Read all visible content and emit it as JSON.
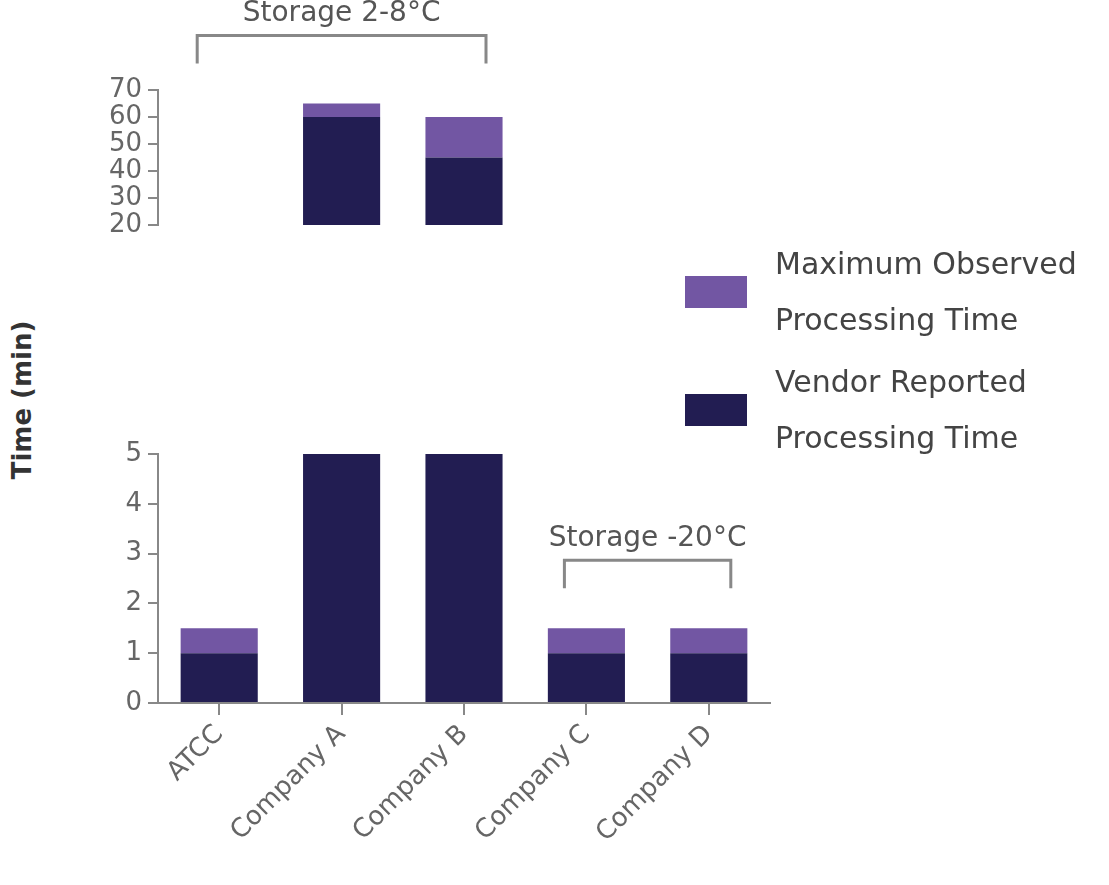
{
  "chart_data": {
    "type": "bar",
    "y_label": "Time (min)",
    "categories": [
      "ATCC",
      "Company A",
      "Company B",
      "Company C",
      "Company D"
    ],
    "series": [
      {
        "name": "Vendor Reported Processing Time",
        "color": "#221d52",
        "values": [
          1,
          60,
          45,
          1,
          1
        ]
      },
      {
        "name": "Maximum Observed Processing Time",
        "color": "#7256a3",
        "values": [
          0.5,
          5,
          15,
          0.5,
          0.5
        ]
      }
    ],
    "stacked": true,
    "ylim": [
      0,
      70
    ],
    "yticks": [
      0,
      1,
      2,
      3,
      4,
      5,
      20,
      30,
      40,
      50,
      60,
      70
    ],
    "grid": false,
    "legend": "right",
    "annotations": [
      {
        "text": "Storage 2-8°C",
        "categories": [
          "ATCC",
          "Company B"
        ]
      },
      {
        "text": "Storage -20°C",
        "categories": [
          "Company C",
          "Company D"
        ]
      }
    ]
  }
}
